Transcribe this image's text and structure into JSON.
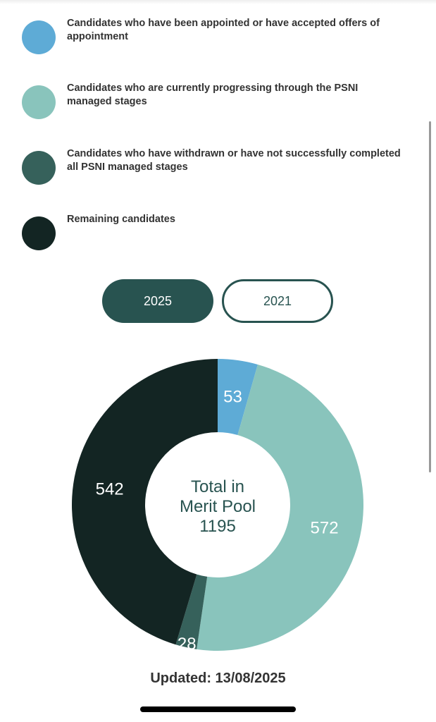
{
  "legend": [
    {
      "label": "Candidates who have been appointed or have accepted offers of appointment",
      "color": "#5eabd6"
    },
    {
      "label": "Candidates who are currently progressing through the PSNI managed stages",
      "color": "#89c4bc"
    },
    {
      "label": "Candidates who have withdrawn or have not successfully completed all PSNI managed stages",
      "color": "#36615b"
    },
    {
      "label": "Remaining candidates",
      "color": "#132523"
    }
  ],
  "tabs": {
    "active": "2025",
    "inactive": "2021"
  },
  "chart_data": {
    "type": "pie",
    "donut": true,
    "categories": [
      "Candidates who have been appointed or have accepted offers of appointment",
      "Candidates who are currently progressing through the PSNI managed stages",
      "Candidates who have withdrawn or have not successfully completed all PSNI managed stages",
      "Remaining candidates"
    ],
    "values": [
      53,
      572,
      28,
      542
    ],
    "colors": [
      "#5eabd6",
      "#89c4bc",
      "#36615b",
      "#132523"
    ],
    "labels": [
      "53",
      "572",
      "28",
      "542"
    ],
    "center_text": [
      "Total in",
      "Merit Pool",
      "1195"
    ]
  },
  "updated": "Updated: 13/08/2025"
}
